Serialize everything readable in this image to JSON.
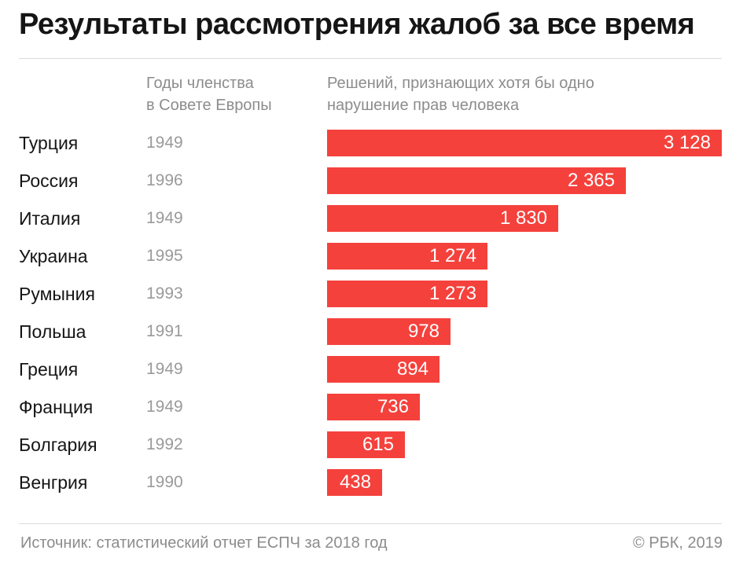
{
  "title": "Результаты рассмотрения жалоб за все время",
  "columns": {
    "years_header": "Годы членства\nв Совете Европы",
    "decisions_header": "Решений, признающих хотя бы одно\nнарушение прав человека"
  },
  "chart_data": {
    "type": "bar",
    "orientation": "horizontal",
    "title": "Результаты рассмотрения жалоб за все время",
    "categories": [
      "Турция",
      "Россия",
      "Италия",
      "Украина",
      "Румыния",
      "Польша",
      "Греция",
      "Франция",
      "Болгария",
      "Венгрия"
    ],
    "years": [
      "1949",
      "1996",
      "1949",
      "1995",
      "1993",
      "1991",
      "1949",
      "1949",
      "1992",
      "1990"
    ],
    "values": [
      3128,
      2365,
      1830,
      1274,
      1273,
      978,
      894,
      736,
      615,
      438
    ],
    "value_labels": [
      "3 128",
      "2 365",
      "1 830",
      "1 274",
      "1 273",
      "978",
      "894",
      "736",
      "615",
      "438"
    ],
    "xlim": [
      0,
      3128
    ],
    "color": "#f5413c",
    "grid": false,
    "legend": false
  },
  "footer": {
    "source": "Источник: статистический отчет ЕСПЧ за 2018 год",
    "copyright": "© РБК, 2019"
  }
}
